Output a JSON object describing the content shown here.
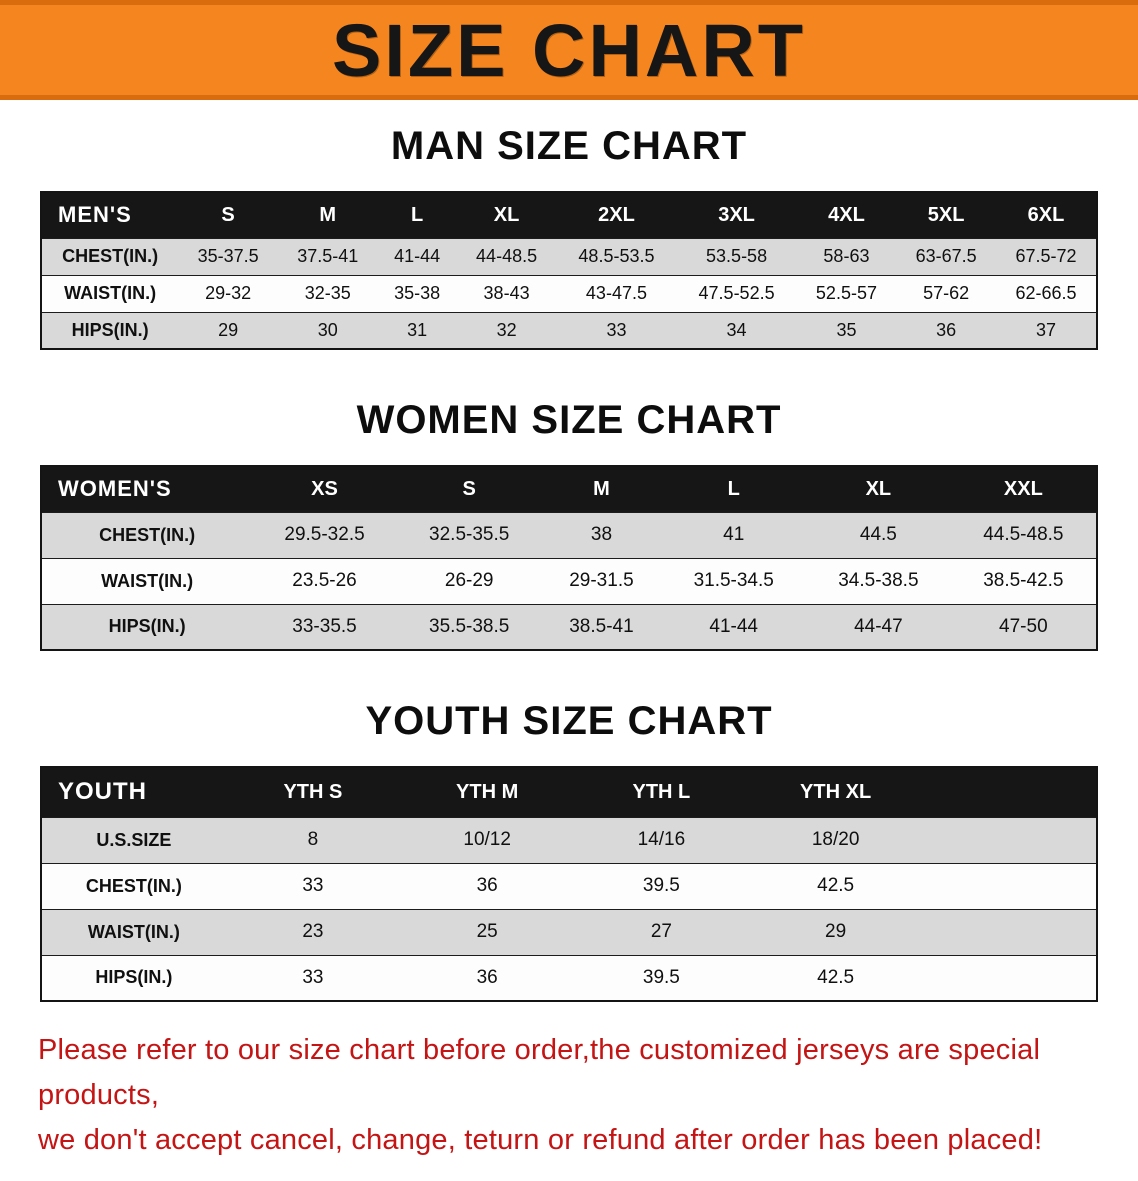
{
  "banner": {
    "title": "SIZE CHART",
    "bg_color": "#f5861f",
    "text_color": "#161616"
  },
  "sections": [
    {
      "heading": "MAN SIZE CHART",
      "table": {
        "header": [
          "MEN'S",
          "S",
          "M",
          "L",
          "XL",
          "2XL",
          "3XL",
          "4XL",
          "5XL",
          "6XL"
        ],
        "rows": [
          [
            "CHEST(IN.)",
            "35-37.5",
            "37.5-41",
            "41-44",
            "44-48.5",
            "48.5-53.5",
            "53.5-58",
            "58-63",
            "63-67.5",
            "67.5-72"
          ],
          [
            "WAIST(IN.)",
            "29-32",
            "32-35",
            "35-38",
            "38-43",
            "43-47.5",
            "47.5-52.5",
            "52.5-57",
            "57-62",
            "62-66.5"
          ],
          [
            "HIPS(IN.)",
            "29",
            "30",
            "31",
            "32",
            "33",
            "34",
            "35",
            "36",
            "37"
          ]
        ]
      }
    },
    {
      "heading": "WOMEN SIZE CHART",
      "table": {
        "header": [
          "WOMEN'S",
          "XS",
          "S",
          "M",
          "L",
          "XL",
          "XXL"
        ],
        "rows": [
          [
            "CHEST(IN.)",
            "29.5-32.5",
            "32.5-35.5",
            "38",
            "41",
            "44.5",
            "44.5-48.5"
          ],
          [
            "WAIST(IN.)",
            "23.5-26",
            "26-29",
            "29-31.5",
            "31.5-34.5",
            "34.5-38.5",
            "38.5-42.5"
          ],
          [
            "HIPS(IN.)",
            "33-35.5",
            "35.5-38.5",
            "38.5-41",
            "41-44",
            "44-47",
            "47-50"
          ]
        ]
      }
    },
    {
      "heading": "YOUTH SIZE CHART",
      "table": {
        "header": [
          "YOUTH",
          "YTH S",
          "YTH M",
          "YTH L",
          "YTH XL"
        ],
        "rows": [
          [
            "U.S.SIZE",
            "8",
            "10/12",
            "14/16",
            "18/20"
          ],
          [
            "CHEST(IN.)",
            "33",
            "36",
            "39.5",
            "42.5"
          ],
          [
            "WAIST(IN.)",
            "23",
            "25",
            "27",
            "29"
          ],
          [
            "HIPS(IN.)",
            "33",
            "36",
            "39.5",
            "42.5"
          ]
        ]
      }
    }
  ],
  "footer": {
    "line1": "Please refer to our size chart before order,the customized jerseys are special products,",
    "line2": "we don't accept cancel, change, teturn or refund after order has been placed!",
    "text_color": "#c41414"
  }
}
